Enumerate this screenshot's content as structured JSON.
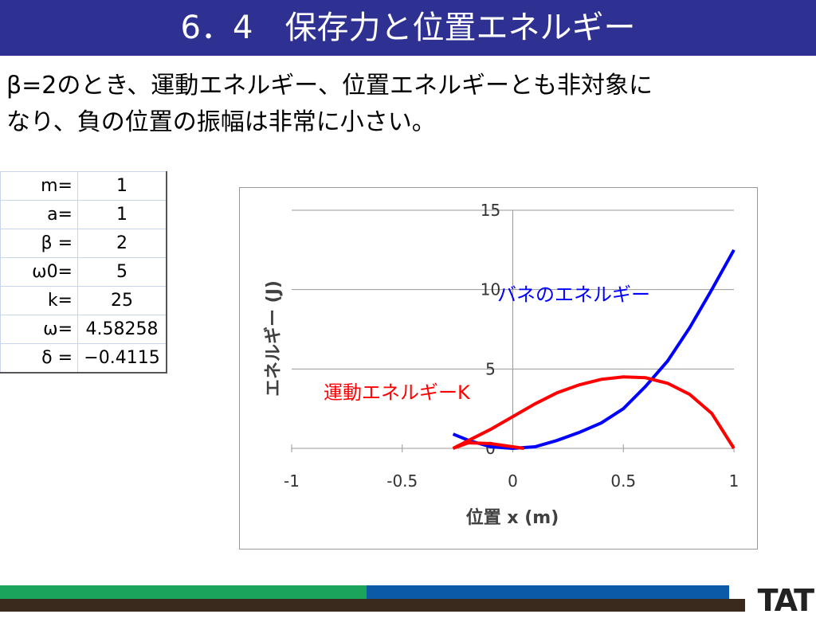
{
  "slide_title": "6．4　保存力と位置エネルギー",
  "body_lines": [
    "β=2のとき、運動エネルギー、位置エネルギーとも非対象に",
    "なり、負の位置の振幅は非常に小さい。"
  ],
  "table": {
    "rows": [
      [
        "m=",
        "1"
      ],
      [
        "a=",
        "1"
      ],
      [
        "β =",
        "2"
      ],
      [
        "ω0=",
        "5"
      ],
      [
        "k=",
        "25"
      ],
      [
        "ω=",
        "4.58258"
      ],
      [
        "δ =",
        "−0.4115"
      ]
    ]
  },
  "logo": "TAT",
  "chart_data": {
    "type": "line",
    "x_label": "位置  x (m)",
    "y_label": "エネルギー (J)",
    "xlim": [
      -1,
      1
    ],
    "xticks": [
      -1,
      -0.5,
      0,
      0.5,
      1
    ],
    "ylim": [
      0,
      15
    ],
    "yticks": [
      0,
      5,
      10,
      15
    ],
    "grid": true,
    "series": [
      {
        "name": "バネのエネルギー",
        "color": "#0000ff",
        "x": [
          -0.27,
          -0.2,
          -0.1,
          0,
          0.1,
          0.2,
          0.3,
          0.4,
          0.5,
          0.6,
          0.7,
          0.8,
          0.9,
          1
        ],
        "values": [
          0.9,
          0.5,
          0.1,
          0,
          0.1,
          0.5,
          1.0,
          1.6,
          2.5,
          3.9,
          5.5,
          7.6,
          10,
          12.5
        ]
      },
      {
        "name": "運動エネルギーK",
        "color": "#ff0000",
        "x": [
          1,
          0.9,
          0.8,
          0.7,
          0.6,
          0.5,
          0.4,
          0.3,
          0.2,
          0.1,
          0,
          -0.1,
          -0.2,
          -0.27,
          -0.2,
          -0.1,
          0,
          0.05
        ],
        "values": [
          0,
          2.2,
          3.4,
          4.1,
          4.45,
          4.5,
          4.35,
          4.0,
          3.5,
          2.8,
          2.0,
          1.2,
          0.5,
          0,
          0.35,
          0.3,
          0.1,
          0
        ]
      }
    ]
  }
}
